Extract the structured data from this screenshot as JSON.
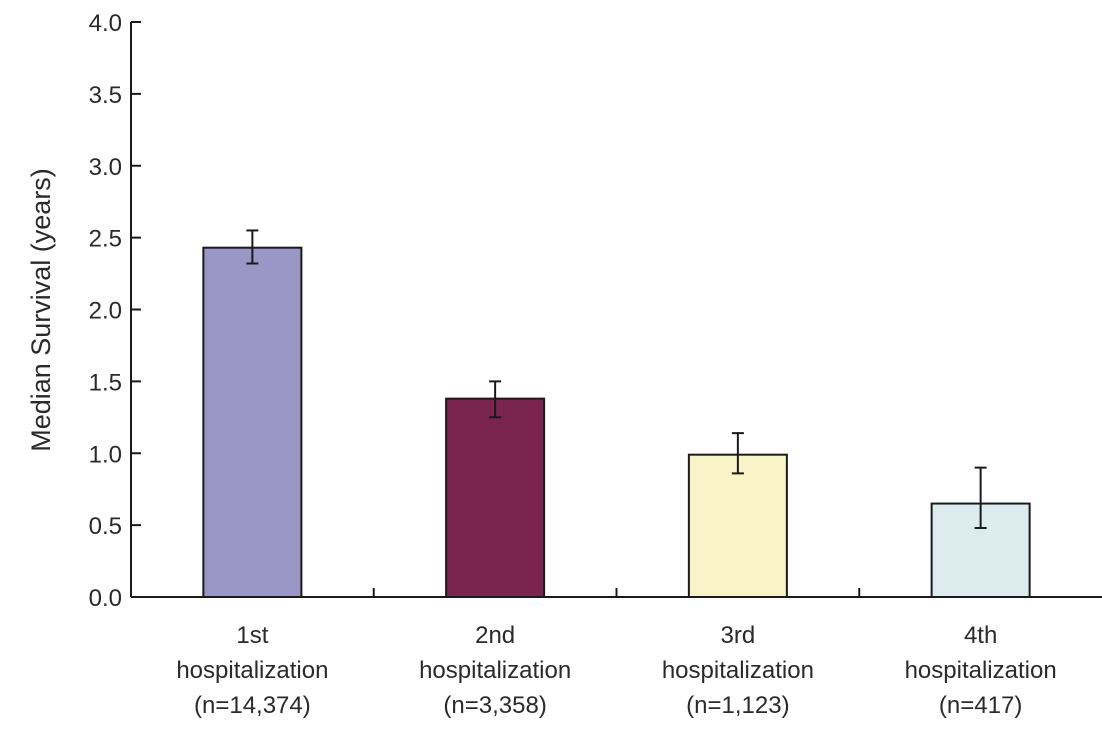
{
  "chart_data": {
    "type": "bar",
    "ylabel": "Median Survival (years)",
    "ylim": [
      0,
      4.0
    ],
    "yticks": [
      "0.0",
      "0.5",
      "1.0",
      "1.5",
      "2.0",
      "2.5",
      "3.0",
      "3.5",
      "4.0"
    ],
    "grid": false,
    "categories": [
      {
        "lines": [
          "1st",
          "hospitalization",
          "(n=14,374)"
        ]
      },
      {
        "lines": [
          "2nd",
          "hospitalization",
          "(n=3,358)"
        ]
      },
      {
        "lines": [
          "3rd",
          "hospitalization",
          "(n=1,123)"
        ]
      },
      {
        "lines": [
          "4th",
          "hospitalization",
          "(n=417)"
        ]
      }
    ],
    "values": [
      2.43,
      1.38,
      0.99,
      0.65
    ],
    "error_low": [
      2.32,
      1.25,
      0.86,
      0.48
    ],
    "error_high": [
      2.55,
      1.5,
      1.14,
      0.9
    ],
    "colors": [
      "#9a96c6",
      "#7a2450",
      "#f8f4c8",
      "#dcecee"
    ]
  }
}
